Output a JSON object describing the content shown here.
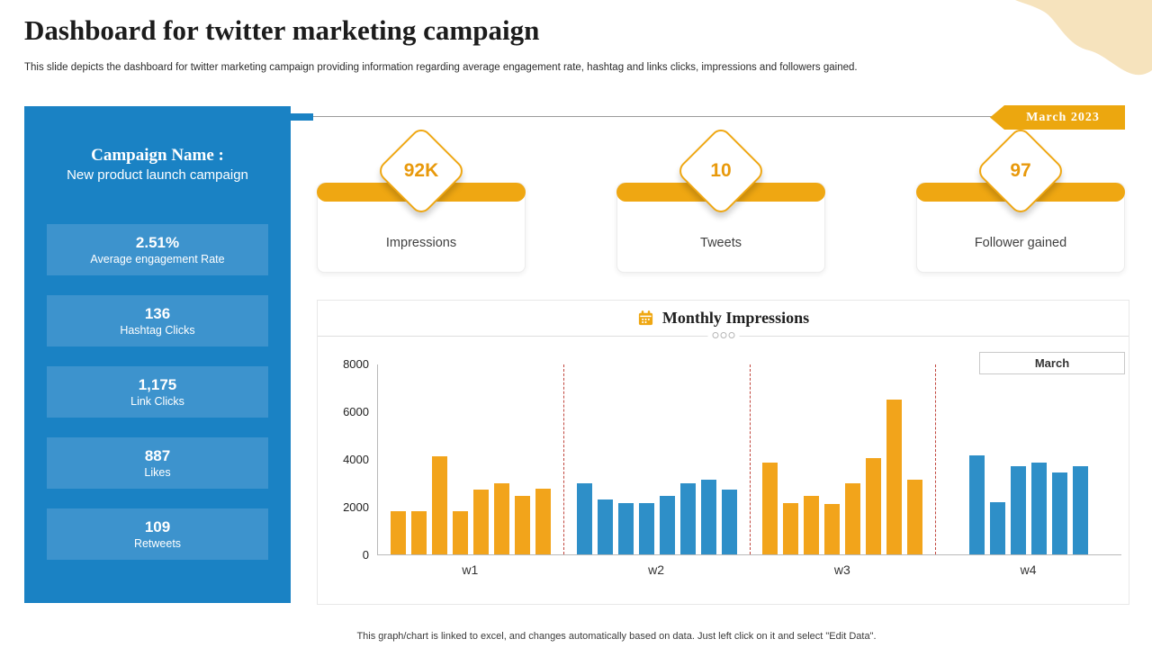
{
  "page": {
    "title": "Dashboard for twitter marketing campaign",
    "subtitle": "This slide depicts the dashboard for twitter marketing campaign providing information regarding average engagement rate, hashtag and links clicks, impressions and followers gained.",
    "footnote": "This graph/chart is linked to excel, and changes automatically based on data. Just left click on it and select \"Edit Data\"."
  },
  "badge": {
    "label": "March 2023"
  },
  "sidebar": {
    "campaign_label": "Campaign Name :",
    "campaign_name": "New product launch campaign",
    "stats": [
      {
        "value": "2.51%",
        "label": "Average engagement Rate"
      },
      {
        "value": "136",
        "label": "Hashtag Clicks"
      },
      {
        "value": "1,175",
        "label": "Link Clicks"
      },
      {
        "value": "887",
        "label": "Likes"
      },
      {
        "value": "109",
        "label": "Retweets"
      }
    ]
  },
  "kpis": [
    {
      "value": "92K",
      "label": "Impressions"
    },
    {
      "value": "10",
      "label": "Tweets"
    },
    {
      "value": "97",
      "label": "Follower gained"
    }
  ],
  "chart_data": {
    "type": "bar",
    "title": "Monthly Impressions",
    "legend_label": "March",
    "legend_position": "top-right",
    "categories": [
      "w1",
      "w2",
      "w3",
      "w4"
    ],
    "groups": [
      {
        "label": "w1",
        "color": "#F2A41B",
        "values": [
          1800,
          1800,
          4100,
          1800,
          2700,
          3000,
          2450,
          2750
        ]
      },
      {
        "label": "w2",
        "color": "#2E8FC8",
        "values": [
          3000,
          2300,
          2150,
          2150,
          2450,
          3000,
          3150,
          2700
        ]
      },
      {
        "label": "w3",
        "color": "#F2A41B",
        "values": [
          3850,
          2150,
          2450,
          2100,
          3000,
          4050,
          6500,
          3150
        ]
      },
      {
        "label": "w4",
        "color": "#2E8FC8",
        "values": [
          4150,
          2200,
          3700,
          3850,
          3450,
          3700
        ]
      }
    ],
    "ylim": [
      0,
      8000
    ],
    "yticks": [
      0,
      2000,
      4000,
      6000,
      8000
    ],
    "grid": false
  },
  "colors": {
    "sidebar_blue": "#1A82C4",
    "stat_box_blue": "#3D93CD",
    "accent_orange": "#EFA712",
    "bar_orange": "#F2A41B",
    "bar_blue": "#2E8FC8",
    "separator_red": "#C0453C",
    "blob_cream": "#F6E3BD"
  }
}
